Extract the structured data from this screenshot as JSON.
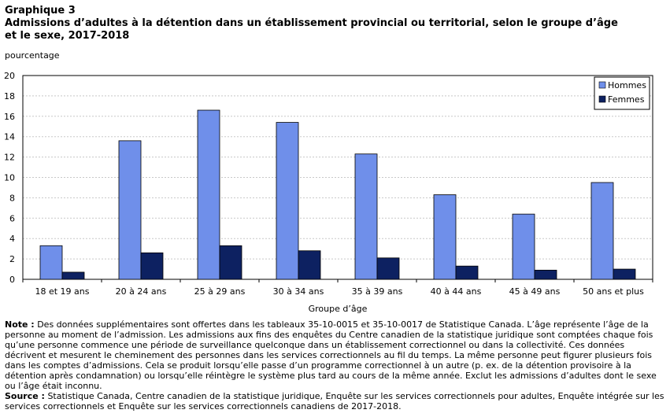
{
  "header": {
    "graph_number": "Graphique 3",
    "title_line1": "Admissions d’adultes à la détention dans un établissement provincial ou territorial, selon le groupe d’âge",
    "title_line2": "et le sexe, 2017-2018"
  },
  "colors": {
    "hommes": "#6f8fea",
    "femmes": "#0d2161",
    "grid": "#c8c8c8",
    "axis": "#000000"
  },
  "chart_data": {
    "type": "bar",
    "title": "Admissions d’adultes à la détention dans un établissement provincial ou territorial, selon le groupe d’âge et le sexe, 2017-2018",
    "ylabel": "pourcentage",
    "xlabel": "Groupe d’âge",
    "ylim": [
      0,
      20
    ],
    "yticks": [
      0,
      2,
      4,
      6,
      8,
      10,
      12,
      14,
      16,
      18,
      20
    ],
    "grid": true,
    "legend_position": "top-right",
    "categories": [
      "18 et 19 ans",
      "20 à 24 ans",
      "25 à 29 ans",
      "30 à 34 ans",
      "35 à 39 ans",
      "40 à 44 ans",
      "45 à 49 ans",
      "50 ans et plus"
    ],
    "series": [
      {
        "name": "Hommes",
        "values": [
          3.3,
          13.6,
          16.6,
          15.4,
          12.3,
          8.3,
          6.4,
          9.5
        ]
      },
      {
        "name": "Femmes",
        "values": [
          0.7,
          2.6,
          3.3,
          2.8,
          2.1,
          1.3,
          0.9,
          1.0
        ]
      }
    ]
  },
  "notes": {
    "note_label": "Note :",
    "note_text": " Des données supplémentaires sont offertes dans les tableaux 35-10-0015 et 35-10-0017 de Statistique Canada. L’âge représente l’âge de la personne au moment de l’admission. Les admissions aux fins des enquêtes du Centre canadien de la statistique juridique sont comptées chaque fois qu’une personne commence une période de surveillance quelconque dans un établissement correctionnel ou dans la collectivité. Ces données décrivent et mesurent le cheminement des personnes dans les services correctionnels au fil du temps. La même personne peut figurer plusieurs fois dans les comptes d’admissions. Cela se produit lorsqu’elle passe d’un programme correctionnel à un autre (p. ex. de la détention provisoire à la détention après condamnation) ou lorsqu’elle réintègre le système plus tard au cours de la même année. Exclut les admissions d’adultes dont le sexe ou l’âge était inconnu.",
    "source_label": "Source :",
    "source_text": " Statistique Canada, Centre canadien de la statistique juridique, Enquête sur les services correctionnels pour adultes, Enquête intégrée sur les services correctionnels et Enquête sur les services correctionnels canadiens de 2017-2018."
  }
}
